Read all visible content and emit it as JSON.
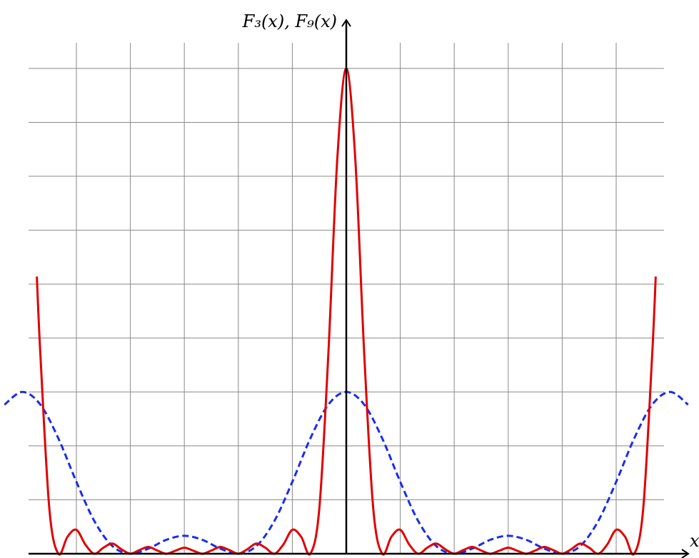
{
  "chart_data": {
    "type": "line",
    "y_label": "F₃(x), F₉(x)",
    "x_label": "x",
    "xlim": [
      -6.718,
      6.718
    ],
    "ylim": [
      0,
      9.74
    ],
    "xticks": [
      -5.236,
      -4.189,
      -3.142,
      -2.094,
      -1.047,
      0,
      1.047,
      2.094,
      3.142,
      4.189,
      5.236
    ],
    "yticks": [
      0,
      1,
      2,
      3,
      4,
      5,
      6,
      7,
      8,
      9
    ],
    "grid": true,
    "series": [
      {
        "color": "#e00000",
        "dash": false,
        "x": [
          -6.003,
          -5.934,
          -5.76,
          -5.585,
          -5.411,
          -5.236,
          -5.061,
          -4.887,
          -4.712,
          -4.538,
          -4.363,
          -4.189,
          -4.014,
          -3.84,
          -3.665,
          -3.491,
          -3.316,
          -3.142,
          -2.967,
          -2.793,
          -2.618,
          -2.443,
          -2.269,
          -2.094,
          -1.92,
          -1.745,
          -1.571,
          -1.396,
          -1.222,
          -1.047,
          -0.873,
          -0.698,
          -0.524,
          -0.349,
          -0.175,
          0,
          0.175,
          0.349,
          0.524,
          0.698,
          0.873,
          1.047,
          1.222,
          1.396,
          1.571,
          1.745,
          1.92,
          2.094,
          2.269,
          2.443,
          2.618,
          2.793,
          2.967,
          3.142,
          3.316,
          3.491,
          3.665,
          3.84,
          4.014,
          4.189,
          4.363,
          4.538,
          4.712,
          4.887,
          5.061,
          5.236,
          5.411,
          5.585,
          5.76,
          5.934,
          6.003
        ],
        "values": [
          5.14,
          3.685,
          0.829,
          0,
          0.311,
          0.444,
          0.169,
          0,
          0.111,
          0.189,
          0.0828,
          0,
          0.0676,
          0.126,
          0.0595,
          0,
          0.056,
          0.111,
          0.056,
          0,
          0.0595,
          0.126,
          0.0676,
          0,
          0.0828,
          0.189,
          0.111,
          0,
          0.169,
          0.444,
          0.311,
          0,
          0.829,
          3.685,
          7.314,
          9,
          7.314,
          3.685,
          0.829,
          0,
          0.311,
          0.444,
          0.169,
          0,
          0.111,
          0.189,
          0.0828,
          0,
          0.0676,
          0.126,
          0.0595,
          0,
          0.056,
          0.111,
          0.056,
          0,
          0.0595,
          0.126,
          0.0676,
          0,
          0.0828,
          0.189,
          0.111,
          0,
          0.169,
          0.444,
          0.311,
          0,
          0.829,
          3.685,
          5.14
        ]
      },
      {
        "color": "#1a2cf0",
        "dash": true,
        "x": [
          -6.632,
          -6.283,
          -5.934,
          -5.585,
          -5.236,
          -4.887,
          -4.538,
          -4.189,
          -3.84,
          -3.491,
          -3.142,
          -2.793,
          -2.443,
          -2.094,
          -1.745,
          -1.396,
          -1.047,
          -0.698,
          -0.349,
          0,
          0.349,
          0.698,
          1.047,
          1.396,
          1.745,
          2.094,
          2.443,
          2.793,
          3.142,
          3.491,
          3.84,
          4.189,
          4.538,
          4.887,
          5.236,
          5.585,
          5.934,
          6.283,
          6.632
        ],
        "values": [
          2.764,
          3,
          2.764,
          2.137,
          1.333,
          0.605,
          0.142,
          0,
          0.0944,
          0.258,
          0.333,
          0.258,
          0.0944,
          0,
          0.142,
          0.605,
          1.333,
          2.137,
          2.764,
          3,
          2.764,
          2.137,
          1.333,
          0.605,
          0.142,
          0,
          0.0944,
          0.258,
          0.333,
          0.258,
          0.0944,
          0,
          0.142,
          0.605,
          1.333,
          2.137,
          2.764,
          3,
          2.764
        ]
      }
    ]
  }
}
